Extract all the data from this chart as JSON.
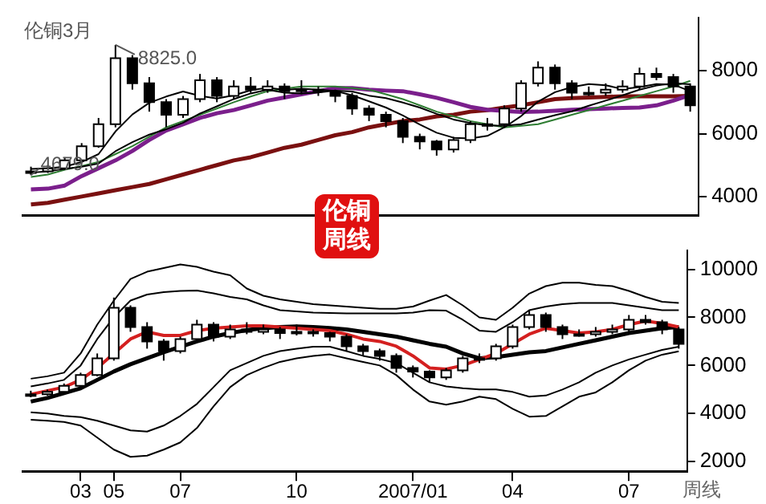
{
  "chart_data": [
    {
      "type": "candlestick",
      "title": "伦铜3月",
      "tick_labels": "y",
      "marker": "none",
      "grid": false,
      "categories": [
        null,
        null,
        null,
        null,
        null,
        null,
        null,
        null,
        null,
        null,
        null,
        null,
        null,
        null,
        null,
        null,
        null,
        null,
        null,
        null,
        null,
        null,
        null,
        null,
        null,
        null,
        null,
        null,
        null,
        null,
        null,
        null,
        null,
        null,
        null,
        null,
        null,
        null,
        null,
        null
      ],
      "ohlc": [
        [
          4750,
          4950,
          4679,
          4800
        ],
        [
          4800,
          5000,
          4750,
          4900
        ],
        [
          4900,
          5250,
          4850,
          5150
        ],
        [
          5150,
          5700,
          5100,
          5600
        ],
        [
          5600,
          6500,
          5550,
          6300
        ],
        [
          6300,
          8825,
          6200,
          8400
        ],
        [
          8400,
          8500,
          7400,
          7600
        ],
        [
          7600,
          7800,
          6700,
          7000
        ],
        [
          7000,
          7100,
          6200,
          6600
        ],
        [
          6600,
          7200,
          6500,
          7100
        ],
        [
          7100,
          7900,
          7000,
          7700
        ],
        [
          7700,
          7800,
          7000,
          7200
        ],
        [
          7200,
          7700,
          7100,
          7500
        ],
        [
          7500,
          7800,
          7300,
          7400
        ],
        [
          7400,
          7700,
          7300,
          7500
        ],
        [
          7500,
          7600,
          7100,
          7350
        ],
        [
          7350,
          7700,
          7250,
          7400
        ],
        [
          7400,
          7500,
          7200,
          7350
        ],
        [
          7350,
          7400,
          7000,
          7200
        ],
        [
          7200,
          7300,
          6600,
          6800
        ],
        [
          6800,
          6900,
          6400,
          6600
        ],
        [
          6600,
          6700,
          6200,
          6400
        ],
        [
          6400,
          6500,
          5700,
          5900
        ],
        [
          5900,
          6000,
          5500,
          5750
        ],
        [
          5750,
          5800,
          5300,
          5500
        ],
        [
          5500,
          5900,
          5400,
          5800
        ],
        [
          5800,
          6400,
          5700,
          6300
        ],
        [
          6300,
          6500,
          6100,
          6300
        ],
        [
          6300,
          6900,
          6200,
          6800
        ],
        [
          6800,
          7700,
          6700,
          7600
        ],
        [
          7600,
          8300,
          7500,
          8100
        ],
        [
          8100,
          8200,
          7400,
          7600
        ],
        [
          7600,
          7700,
          7100,
          7300
        ],
        [
          7300,
          7500,
          7200,
          7300
        ],
        [
          7300,
          7600,
          7200,
          7400
        ],
        [
          7400,
          7700,
          7300,
          7500
        ],
        [
          7500,
          8100,
          7400,
          7900
        ],
        [
          7900,
          8100,
          7700,
          7800
        ],
        [
          7800,
          7900,
          7300,
          7500
        ],
        [
          7500,
          7600,
          6700,
          6900
        ]
      ],
      "series": [
        {
          "type": "line",
          "color": "#000000",
          "values": [
            4880,
            4900,
            4950,
            5100,
            5350,
            6070,
            6610,
            6980,
            7180,
            7340,
            7200,
            7120,
            7220,
            7380,
            7460,
            7390,
            7430,
            7400,
            7360,
            7220,
            7030,
            6830,
            6580,
            6290,
            6030,
            5870,
            5850,
            5930,
            6200,
            6560,
            7020,
            7320,
            7480,
            7580,
            7540,
            7420,
            7480,
            7580,
            7560,
            7350
          ]
        },
        {
          "type": "line",
          "color": "#000000",
          "values": [
            4760,
            4800,
            4880,
            4950,
            5050,
            5440,
            5730,
            5970,
            6140,
            6350,
            6640,
            6870,
            7100,
            7280,
            7400,
            7300,
            7280,
            7310,
            7370,
            7340,
            7210,
            7130,
            6990,
            6830,
            6630,
            6450,
            6340,
            6260,
            6250,
            6300,
            6450,
            6590,
            6710,
            6890,
            7050,
            7220,
            7400,
            7530,
            7600,
            7570
          ]
        },
        {
          "type": "line",
          "color": "#2e7d32",
          "values": [
            4620,
            4700,
            4850,
            4970,
            5100,
            5350,
            5600,
            5900,
            6200,
            6400,
            6600,
            6800,
            7000,
            7180,
            7350,
            7430,
            7500,
            7500,
            7500,
            7450,
            7400,
            7250,
            7100,
            6900,
            6700,
            6550,
            6400,
            6300,
            6200,
            6250,
            6300,
            6450,
            6600,
            6750,
            6900,
            7050,
            7200,
            7350,
            7500,
            7680
          ]
        },
        {
          "type": "line",
          "color": "#7b1f8c",
          "values": [
            4230,
            4250,
            4350,
            4650,
            4900,
            5150,
            5450,
            5800,
            6100,
            6300,
            6500,
            6650,
            6750,
            6900,
            7050,
            7150,
            7250,
            7350,
            7450,
            7450,
            7400,
            7370,
            7350,
            7250,
            7140,
            7000,
            6850,
            6760,
            6720,
            6690,
            6700,
            6730,
            6760,
            6780,
            6800,
            6820,
            6830,
            6900,
            7050,
            7230
          ]
        },
        {
          "type": "line",
          "color": "#7a1010",
          "values": [
            3750,
            3800,
            3900,
            4000,
            4100,
            4200,
            4300,
            4400,
            4550,
            4700,
            4850,
            5000,
            5150,
            5250,
            5400,
            5550,
            5650,
            5800,
            5950,
            6050,
            6200,
            6300,
            6400,
            6450,
            6550,
            6600,
            6700,
            6750,
            6830,
            6900,
            7000,
            7100,
            7130,
            7150,
            7170,
            7190,
            7190,
            7190,
            7190,
            7200
          ]
        }
      ],
      "ylim": [
        3400,
        9700
      ],
      "yticks": [
        4000,
        6000,
        8000
      ],
      "annotations": [
        "8825.0",
        "4679.0",
        "伦铜周线"
      ]
    },
    {
      "type": "candlestick",
      "marker": "none",
      "grid": false,
      "categories": [
        null,
        null,
        null,
        "03",
        null,
        "05",
        null,
        null,
        null,
        "07",
        null,
        null,
        null,
        null,
        null,
        null,
        "10",
        null,
        null,
        null,
        null,
        null,
        null,
        "2007/01",
        null,
        null,
        null,
        null,
        null,
        "04",
        null,
        null,
        null,
        null,
        null,
        null,
        "07",
        null,
        null,
        null
      ],
      "ohlc": [
        [
          4750,
          4950,
          4679,
          4800
        ],
        [
          4800,
          5000,
          4750,
          4900
        ],
        [
          4900,
          5250,
          4850,
          5150
        ],
        [
          5150,
          5700,
          5100,
          5600
        ],
        [
          5600,
          6500,
          5550,
          6300
        ],
        [
          6300,
          8825,
          6200,
          8400
        ],
        [
          8400,
          8500,
          7400,
          7600
        ],
        [
          7600,
          7800,
          6700,
          7000
        ],
        [
          7000,
          7100,
          6200,
          6600
        ],
        [
          6600,
          7200,
          6500,
          7100
        ],
        [
          7100,
          7900,
          7000,
          7700
        ],
        [
          7700,
          7800,
          7000,
          7200
        ],
        [
          7200,
          7700,
          7100,
          7500
        ],
        [
          7500,
          7800,
          7300,
          7400
        ],
        [
          7400,
          7700,
          7300,
          7500
        ],
        [
          7500,
          7600,
          7100,
          7350
        ],
        [
          7350,
          7700,
          7250,
          7400
        ],
        [
          7400,
          7500,
          7200,
          7350
        ],
        [
          7350,
          7400,
          7000,
          7200
        ],
        [
          7200,
          7300,
          6600,
          6800
        ],
        [
          6800,
          6900,
          6400,
          6600
        ],
        [
          6600,
          6700,
          6200,
          6400
        ],
        [
          6400,
          6500,
          5700,
          5900
        ],
        [
          5900,
          6000,
          5500,
          5750
        ],
        [
          5750,
          5800,
          5300,
          5500
        ],
        [
          5500,
          5900,
          5400,
          5800
        ],
        [
          5800,
          6400,
          5700,
          6300
        ],
        [
          6300,
          6500,
          6100,
          6300
        ],
        [
          6300,
          6900,
          6200,
          6800
        ],
        [
          6800,
          7700,
          6700,
          7600
        ],
        [
          7600,
          8300,
          7500,
          8100
        ],
        [
          8100,
          8200,
          7400,
          7600
        ],
        [
          7600,
          7700,
          7100,
          7300
        ],
        [
          7300,
          7500,
          7200,
          7300
        ],
        [
          7300,
          7600,
          7200,
          7400
        ],
        [
          7400,
          7700,
          7300,
          7500
        ],
        [
          7500,
          8100,
          7400,
          7900
        ],
        [
          7900,
          8100,
          7700,
          7800
        ],
        [
          7800,
          7900,
          7300,
          7500
        ],
        [
          7500,
          7600,
          6700,
          6900
        ]
      ],
      "series": [
        {
          "type": "line",
          "color": "#d42020",
          "values": [
            4800,
            4950,
            5100,
            5400,
            5900,
            6500,
            7100,
            7400,
            7250,
            7250,
            7450,
            7550,
            7600,
            7650,
            7650,
            7600,
            7550,
            7500,
            7450,
            7300,
            7100,
            7000,
            6800,
            6400,
            5900,
            5850,
            6000,
            6250,
            6500,
            6900,
            7300,
            7550,
            7450,
            7350,
            7400,
            7500,
            7700,
            7850,
            7750,
            7600
          ]
        },
        {
          "type": "line",
          "color": "#000000",
          "values": [
            4500,
            4650,
            4850,
            5050,
            5400,
            5750,
            6050,
            6300,
            6550,
            6780,
            7000,
            7200,
            7350,
            7470,
            7550,
            7600,
            7620,
            7600,
            7560,
            7500,
            7400,
            7300,
            7200,
            7050,
            6900,
            6780,
            6500,
            6300,
            6350,
            6450,
            6550,
            6600,
            6750,
            6900,
            7050,
            7200,
            7350,
            7450,
            7550,
            7600
          ]
        },
        {
          "type": "line",
          "color": "#000000",
          "values": [
            5450,
            5550,
            5700,
            6500,
            7700,
            8700,
            9600,
            9900,
            10050,
            10200,
            10100,
            9900,
            9750,
            9200,
            8900,
            8750,
            8650,
            8550,
            8500,
            8450,
            8400,
            8360,
            8360,
            8450,
            8700,
            8930,
            8500,
            8000,
            7900,
            8400,
            8990,
            9300,
            9440,
            9440,
            9350,
            9300,
            9100,
            8850,
            8650,
            8600
          ]
        },
        {
          "type": "line",
          "color": "#000000",
          "values": [
            5130,
            5250,
            5400,
            6000,
            7100,
            8000,
            8700,
            8950,
            9050,
            9100,
            9120,
            9000,
            8850,
            8750,
            8500,
            8300,
            8250,
            8200,
            8180,
            8170,
            8170,
            8170,
            8170,
            8200,
            8300,
            8280,
            7900,
            7450,
            7400,
            7800,
            8300,
            8450,
            8550,
            8600,
            8600,
            8600,
            8500,
            8400,
            8300,
            8300
          ]
        },
        {
          "type": "line",
          "color": "#000000",
          "values": [
            4050,
            4000,
            3900,
            3850,
            3700,
            3500,
            3300,
            3250,
            3500,
            3900,
            4400,
            5100,
            5800,
            6100,
            6400,
            6600,
            6700,
            6780,
            6780,
            6600,
            6400,
            6270,
            6100,
            5700,
            5300,
            5130,
            5050,
            5000,
            5000,
            4900,
            4700,
            4750,
            5000,
            5300,
            5700,
            6000,
            6250,
            6450,
            6650,
            6780
          ]
        },
        {
          "type": "line",
          "color": "#000000",
          "values": [
            3740,
            3700,
            3650,
            3500,
            3000,
            2500,
            2200,
            2250,
            2500,
            2800,
            3400,
            4300,
            5100,
            5600,
            5900,
            6150,
            6300,
            6400,
            6460,
            6300,
            6150,
            6000,
            5600,
            5000,
            4500,
            4370,
            4500,
            4700,
            4600,
            4200,
            3870,
            3900,
            4300,
            4700,
            4880,
            5300,
            5800,
            6200,
            6450,
            6590
          ]
        }
      ],
      "ylim": [
        1600,
        10800
      ],
      "yticks": [
        2000,
        4000,
        6000,
        8000,
        10000
      ],
      "annotations": [
        "周线"
      ]
    }
  ]
}
